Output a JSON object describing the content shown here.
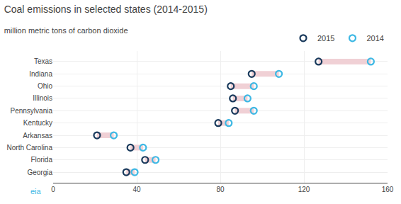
{
  "chart_data": {
    "type": "dumbbell",
    "orientation": "horizontal",
    "title": "Coal emissions in selected states (2014-2015)",
    "subtitle": "million metric tons of carbon dioxide",
    "categories": [
      "Texas",
      "Indiana",
      "Ohio",
      "Illinois",
      "Pennsylvania",
      "Kentucky",
      "Arkansas",
      "North Carolina",
      "Florida",
      "Georgia"
    ],
    "series": [
      {
        "name": "2015",
        "color": "#1a3a5c",
        "marker": "circle",
        "values": [
          127,
          95,
          85,
          86,
          87,
          79,
          21,
          37,
          44,
          35
        ]
      },
      {
        "name": "2014",
        "color": "#3eb8e4",
        "marker": "circle",
        "values": [
          152,
          108,
          96,
          93,
          96,
          84,
          29,
          43,
          49,
          39
        ]
      }
    ],
    "color": "#f0d0d5",
    "xlim": [
      0,
      160
    ],
    "xticks": [
      0,
      40,
      80,
      120,
      160
    ],
    "grid": true,
    "legend": "top right",
    "annotations": [
      "eia"
    ]
  }
}
